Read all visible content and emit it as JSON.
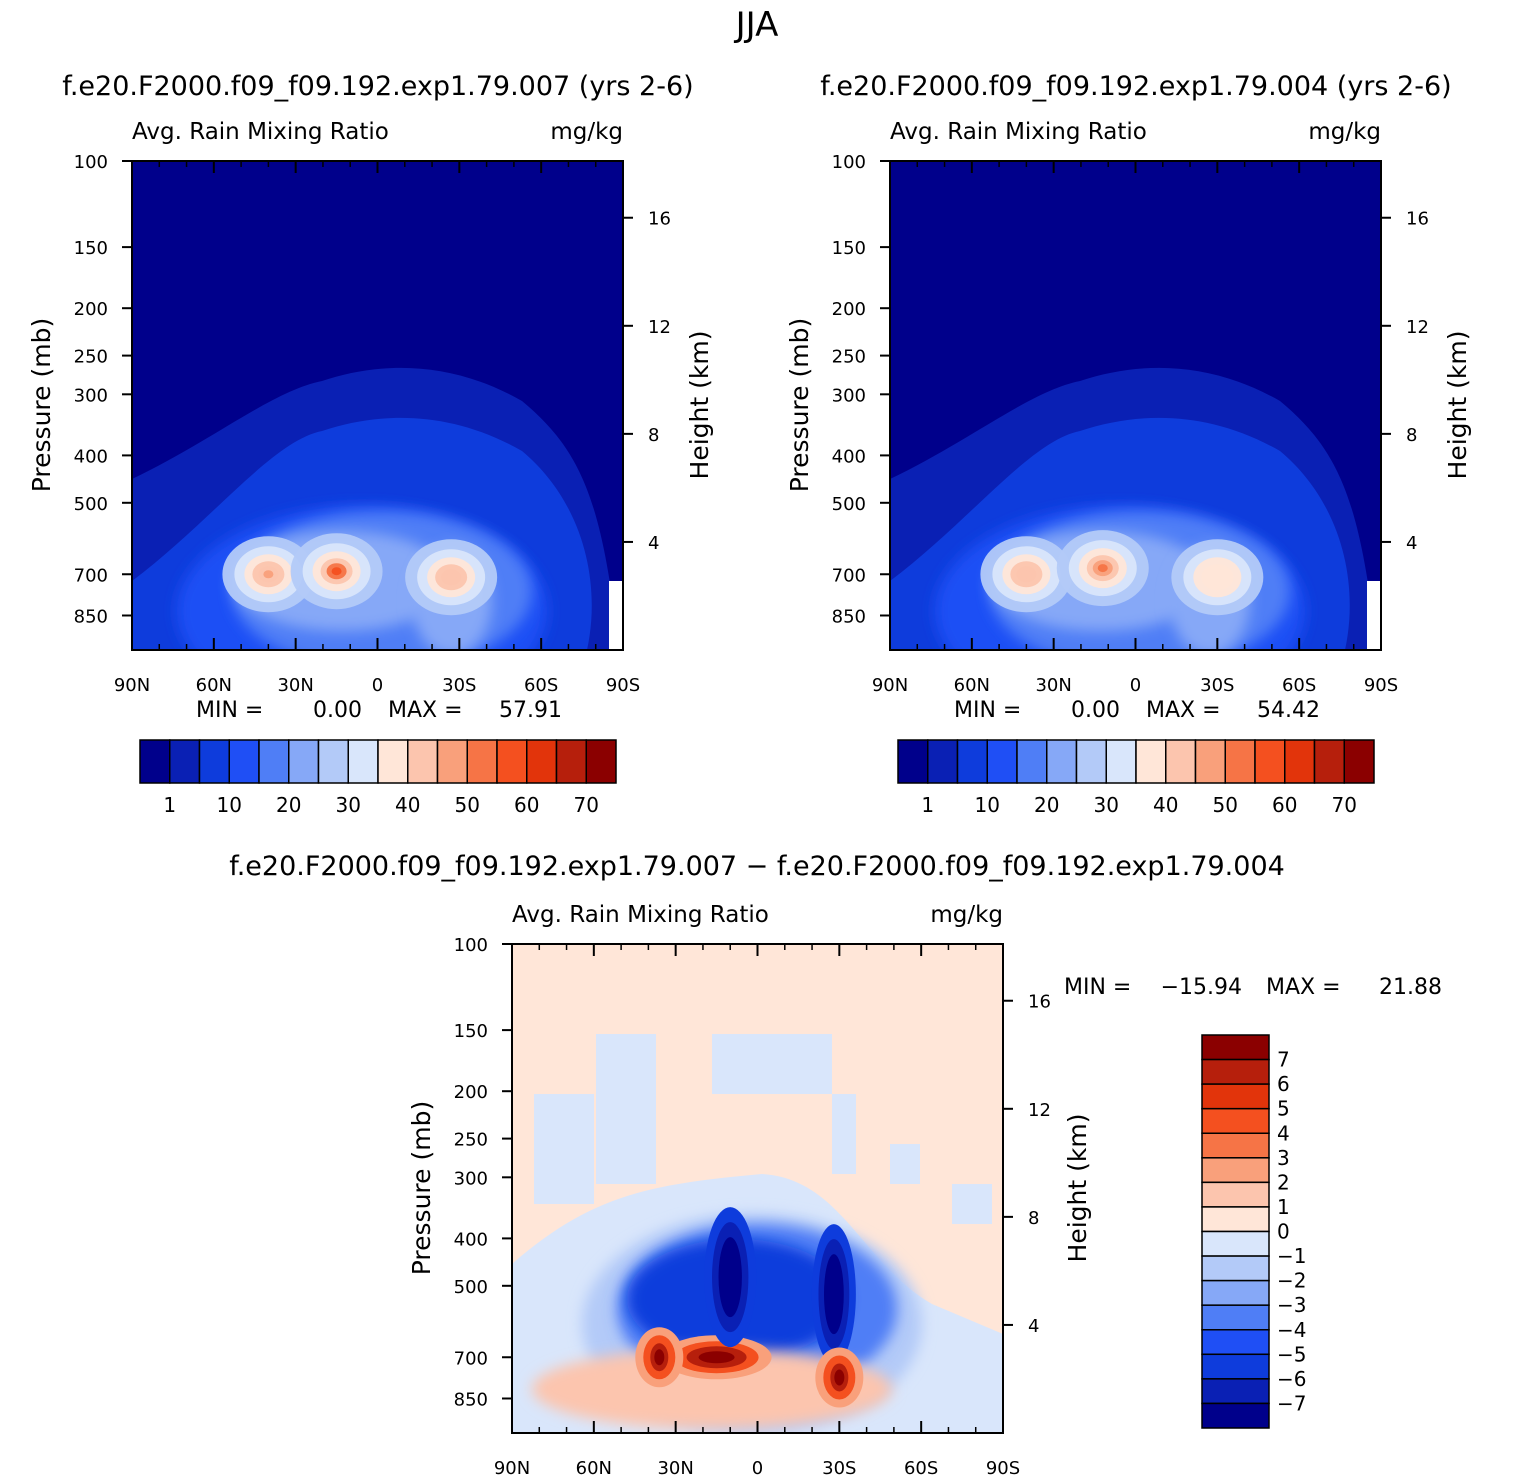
{
  "figure_title": "JJA",
  "chart_data": [
    {
      "type": "heatmap",
      "plot_title": "f.e20.F2000.f09_f09.192.exp1.79.007 (yrs 2-6)",
      "variable": "Avg. Rain Mixing Ratio",
      "units": "mg/kg",
      "ylabel": "Pressure (mb)",
      "y2label": "Height (km)",
      "x_ticks": [
        "90N",
        "60N",
        "30N",
        "0",
        "30S",
        "60S",
        "90S"
      ],
      "x_range": [
        90,
        -90
      ],
      "y_ticks": [
        100,
        150,
        200,
        250,
        300,
        400,
        500,
        700,
        850
      ],
      "y_range_mb": [
        100,
        1000
      ],
      "y2_ticks_km": [
        4,
        8,
        12,
        16
      ],
      "stats": {
        "min_label": "MIN =",
        "min": "0.00",
        "max_label": "MAX =",
        "max": "57.91"
      },
      "colorbar": {
        "orientation": "horizontal",
        "labels": [
          "1",
          "10",
          "20",
          "30",
          "40",
          "50",
          "60",
          "70"
        ],
        "colors": [
          "#00008b",
          "#0a20b4",
          "#0e3cdc",
          "#1f4ff5",
          "#4f7ef6",
          "#86a8f7",
          "#b3caf8",
          "#d9e6fb",
          "#ffe6d8",
          "#fcc5ae",
          "#f9a07b",
          "#f67446",
          "#f4501f",
          "#e2340b",
          "#b61f0c",
          "#8b0000"
        ]
      },
      "features": [
        {
          "lat": 40,
          "p_mb": 700,
          "value": 45
        },
        {
          "lat": 15,
          "p_mb": 690,
          "value": 57.91
        },
        {
          "lat": -27,
          "p_mb": 710,
          "value": 40
        }
      ]
    },
    {
      "type": "heatmap",
      "plot_title": "f.e20.F2000.f09_f09.192.exp1.79.004 (yrs 2-6)",
      "variable": "Avg. Rain Mixing Ratio",
      "units": "mg/kg",
      "ylabel": "Pressure (mb)",
      "y2label": "Height (km)",
      "x_ticks": [
        "90N",
        "60N",
        "30N",
        "0",
        "30S",
        "60S",
        "90S"
      ],
      "x_range": [
        90,
        -90
      ],
      "y_ticks": [
        100,
        150,
        200,
        250,
        300,
        400,
        500,
        700,
        850
      ],
      "y_range_mb": [
        100,
        1000
      ],
      "y2_ticks_km": [
        4,
        8,
        12,
        16
      ],
      "stats": {
        "min_label": "MIN =",
        "min": "0.00",
        "max_label": "MAX =",
        "max": "54.42"
      },
      "colorbar": {
        "orientation": "horizontal",
        "labels": [
          "1",
          "10",
          "20",
          "30",
          "40",
          "50",
          "60",
          "70"
        ],
        "colors": [
          "#00008b",
          "#0a20b4",
          "#0e3cdc",
          "#1f4ff5",
          "#4f7ef6",
          "#86a8f7",
          "#b3caf8",
          "#d9e6fb",
          "#ffe6d8",
          "#fcc5ae",
          "#f9a07b",
          "#f67446",
          "#f4501f",
          "#e2340b",
          "#b61f0c",
          "#8b0000"
        ]
      },
      "features": [
        {
          "lat": 40,
          "p_mb": 700,
          "value": 44
        },
        {
          "lat": 12,
          "p_mb": 680,
          "value": 54.42
        },
        {
          "lat": -30,
          "p_mb": 710,
          "value": 38
        }
      ]
    },
    {
      "type": "heatmap",
      "plot_title": "f.e20.F2000.f09_f09.192.exp1.79.007 − f.e20.F2000.f09_f09.192.exp1.79.004",
      "variable": "Avg. Rain Mixing Ratio",
      "units": "mg/kg",
      "ylabel": "Pressure (mb)",
      "y2label": "Height (km)",
      "x_ticks": [
        "90N",
        "60N",
        "30N",
        "0",
        "30S",
        "60S",
        "90S"
      ],
      "x_range": [
        90,
        -90
      ],
      "y_ticks": [
        100,
        150,
        200,
        250,
        300,
        400,
        500,
        700,
        850
      ],
      "y_range_mb": [
        100,
        1000
      ],
      "y2_ticks_km": [
        4,
        8,
        12,
        16
      ],
      "stats": {
        "min_label": "MIN =",
        "min": "−15.94",
        "max_label": "MAX =",
        "max": "21.88"
      },
      "colorbar": {
        "orientation": "vertical",
        "labels": [
          "7",
          "6",
          "5",
          "4",
          "3",
          "2",
          "1",
          "0",
          "−1",
          "−2",
          "−3",
          "−4",
          "−5",
          "−6",
          "−7"
        ],
        "colors": [
          "#8b0000",
          "#b61f0c",
          "#e2340b",
          "#f4501f",
          "#f67446",
          "#f9a07b",
          "#fcc5ae",
          "#ffe6d8",
          "#d9e6fb",
          "#b3caf8",
          "#86a8f7",
          "#4f7ef6",
          "#1f4ff5",
          "#0e3cdc",
          "#0a20b4",
          "#00008b"
        ]
      },
      "features": [
        {
          "lat": 15,
          "p_mb": 700,
          "value": 21.88
        },
        {
          "lat": 36,
          "p_mb": 700,
          "value": 8
        },
        {
          "lat": 10,
          "p_mb": 480,
          "value": -15.94
        },
        {
          "lat": -28,
          "p_mb": 520,
          "value": -9
        },
        {
          "lat": -30,
          "p_mb": 770,
          "value": 5
        }
      ]
    }
  ]
}
